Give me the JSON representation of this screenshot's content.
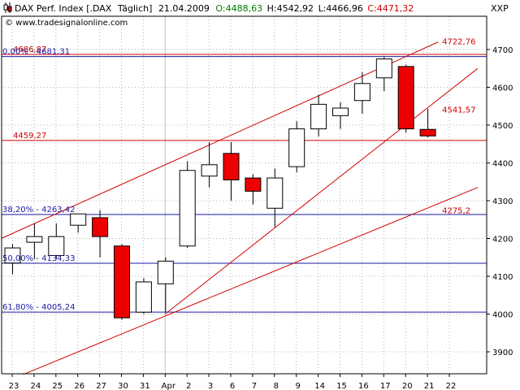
{
  "header": {
    "instrument": "DAX Perf. Index [.DAX",
    "period": "Täglich]",
    "date": "21.04.2009",
    "open": "O:4488,63",
    "high": "H:4542,92",
    "low": "L:4466,96",
    "close": "C:4471,32",
    "source": "© www.tradesignalonline.com",
    "symbol": "XXP"
  },
  "colors": {
    "up_fill": "#ffffff",
    "down_fill": "#ee0000",
    "candle_outline": "#000000",
    "red_lines": "#d40000",
    "blue_lines": "#1a1aa6",
    "level_label_red": "#cc0000",
    "level_label_blue": "#1a1aa6",
    "month_marker": "#a8d0a8"
  },
  "chart_data": {
    "type": "candlestick",
    "x_ticks": [
      "23",
      "24",
      "25",
      "26",
      "27",
      "30",
      "31",
      "Apr",
      "2",
      "3",
      "6",
      "7",
      "8",
      "9",
      "14",
      "15",
      "16",
      "17",
      "20",
      "21",
      "22"
    ],
    "month_marker_index": 7,
    "y_ticks": [
      3900,
      4000,
      4100,
      4200,
      4300,
      4400,
      4500,
      4600,
      4700
    ],
    "ylim": [
      3842,
      4788
    ],
    "grid": true,
    "candles": [
      {
        "i": 0,
        "open": 4135,
        "high": 4185,
        "low": 4105,
        "close": 4175
      },
      {
        "i": 1,
        "open": 4190,
        "high": 4240,
        "low": 4145,
        "close": 4205
      },
      {
        "i": 2,
        "open": 4155,
        "high": 4240,
        "low": 4145,
        "close": 4205
      },
      {
        "i": 3,
        "open": 4235,
        "high": 4265,
        "low": 4215,
        "close": 4265
      },
      {
        "i": 4,
        "open": 4255,
        "high": 4275,
        "low": 4150,
        "close": 4205
      },
      {
        "i": 5,
        "open": 4180,
        "high": 4185,
        "low": 3985,
        "close": 3990
      },
      {
        "i": 6,
        "open": 4005,
        "high": 4095,
        "low": 4000,
        "close": 4085
      },
      {
        "i": 7,
        "open": 4080,
        "high": 4150,
        "low": 4005,
        "close": 4140
      },
      {
        "i": 8,
        "open": 4180,
        "high": 4405,
        "low": 4175,
        "close": 4380
      },
      {
        "i": 9,
        "open": 4365,
        "high": 4455,
        "low": 4335,
        "close": 4395
      },
      {
        "i": 10,
        "open": 4425,
        "high": 4455,
        "low": 4300,
        "close": 4355
      },
      {
        "i": 11,
        "open": 4360,
        "high": 4370,
        "low": 4290,
        "close": 4325
      },
      {
        "i": 12,
        "open": 4280,
        "high": 4385,
        "low": 4230,
        "close": 4360
      },
      {
        "i": 13,
        "open": 4390,
        "high": 4510,
        "low": 4375,
        "close": 4490
      },
      {
        "i": 14,
        "open": 4490,
        "high": 4580,
        "low": 4470,
        "close": 4555
      },
      {
        "i": 15,
        "open": 4525,
        "high": 4560,
        "low": 4490,
        "close": 4545
      },
      {
        "i": 16,
        "open": 4565,
        "high": 4640,
        "low": 4530,
        "close": 4610
      },
      {
        "i": 17,
        "open": 4625,
        "high": 4680,
        "low": 4590,
        "close": 4675
      },
      {
        "i": 18,
        "open": 4655,
        "high": 4660,
        "low": 4480,
        "close": 4490
      },
      {
        "i": 19,
        "open": 4488.63,
        "high": 4542.92,
        "low": 4466.96,
        "close": 4471.32
      }
    ],
    "horizontal_levels": [
      {
        "value": 4686.87,
        "label": "4686,87",
        "color": "red",
        "label_pos": "left"
      },
      {
        "value": 4681.31,
        "label": "0,00% - 4681,31",
        "color": "blue",
        "label_pos": "left"
      },
      {
        "value": 4459.27,
        "label": "4459,27",
        "color": "red",
        "label_pos": "left"
      },
      {
        "value": 4263.42,
        "label": "38,20% - 4263,42",
        "color": "blue",
        "label_pos": "left"
      },
      {
        "value": 4134.33,
        "label": "50,00% - 4134,33",
        "color": "blue",
        "label_pos": "left"
      },
      {
        "value": 4005.24,
        "label": "61,80% - 4005,24",
        "color": "blue",
        "label_pos": "left"
      }
    ],
    "trend_lines": [
      {
        "x1": -0.5,
        "y1": 4200,
        "x2": 19.5,
        "y2": 4720
      },
      {
        "x1": 7.0,
        "y1": 4000,
        "x2": 21.3,
        "y2": 4650
      },
      {
        "x1": 0.5,
        "y1": 3840,
        "x2": 21.3,
        "y2": 4335
      }
    ],
    "annotations": [
      {
        "x": 19.0,
        "y": 4722.76,
        "text": "4722,76"
      },
      {
        "x": 19.0,
        "y": 4541.57,
        "text": "4541,57"
      },
      {
        "x": 19.0,
        "y": 4275.2,
        "text": "4275,2"
      }
    ]
  }
}
